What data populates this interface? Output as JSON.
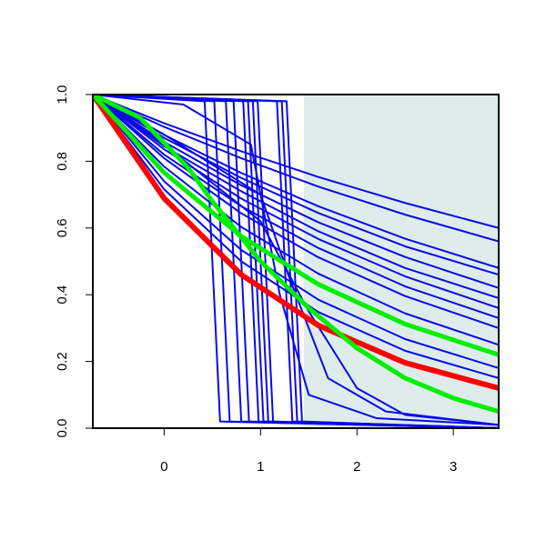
{
  "chart_data": {
    "type": "line",
    "xlim": [
      -0.74,
      3.47
    ],
    "ylim": [
      0,
      1
    ],
    "xticks": [
      0,
      1,
      2,
      3
    ],
    "yticks": [
      {
        "value": 0,
        "label": "0.0"
      },
      0.2,
      0.4,
      0.6,
      0.8,
      {
        "value": 1,
        "label": "1.0"
      }
    ],
    "shade": {
      "xlim": [
        1.45,
        3.47
      ],
      "color": "#dfecec"
    },
    "series": [
      {
        "color": "#0a0ae6",
        "width": 2,
        "x": [
          -0.74,
          0,
          0.8,
          1.6,
          2.5,
          3.47
        ],
        "values": [
          1,
          0.914,
          0.83,
          0.753,
          0.675,
          0.6
        ]
      },
      {
        "color": "#0a0ae6",
        "width": 2,
        "x": [
          -0.74,
          0,
          0.8,
          1.6,
          2.5,
          3.47
        ],
        "values": [
          1,
          0.903,
          0.809,
          0.724,
          0.64,
          0.56
        ]
      },
      {
        "color": "#0a0ae6",
        "width": 2,
        "x": [
          -0.74,
          0,
          0.8,
          1.6,
          2.5,
          3.47
        ],
        "values": [
          1,
          0.879,
          0.765,
          0.665,
          0.568,
          0.48
        ]
      },
      {
        "color": "#0a0ae6",
        "width": 2,
        "x": [
          -0.74,
          0,
          0.8,
          1.6,
          2.5,
          3.47
        ],
        "values": [
          1,
          0.87,
          0.75,
          0.645,
          0.545,
          0.46
        ]
      },
      {
        "color": "#0a0ae6",
        "width": 2,
        "x": [
          -0.74,
          0,
          0.8,
          1.6,
          2.5,
          3.47
        ],
        "values": [
          1,
          0.858,
          0.728,
          0.617,
          0.513,
          0.42
        ]
      },
      {
        "color": "#0a0ae6",
        "width": 2,
        "x": [
          -0.74,
          0,
          0.8,
          1.6,
          2.5,
          3.47
        ],
        "values": [
          1,
          0.845,
          0.71,
          0.59,
          0.48,
          0.39
        ]
      },
      {
        "color": "#0a0ae6",
        "width": 2,
        "x": [
          -0.74,
          0,
          0.8,
          1.6,
          2.5,
          3.47
        ],
        "values": [
          1,
          0.836,
          0.688,
          0.567,
          0.455,
          0.36
        ]
      },
      {
        "color": "#0a0ae6",
        "width": 2,
        "x": [
          -0.74,
          0,
          0.8,
          1.6,
          2.5,
          3.47
        ],
        "values": [
          1,
          0.82,
          0.665,
          0.54,
          0.425,
          0.33
        ]
      },
      {
        "color": "#0a0ae6",
        "width": 2,
        "x": [
          -0.74,
          0,
          0.8,
          1.6,
          2.5,
          3.47
        ],
        "values": [
          1,
          0.809,
          0.644,
          0.512,
          0.396,
          0.3
        ]
      },
      {
        "color": "#0a0ae6",
        "width": 2,
        "x": [
          -0.74,
          0,
          0.8,
          1.6,
          2.5,
          3.47
        ],
        "values": [
          1,
          0.784,
          0.603,
          0.463,
          0.344,
          0.25
        ]
      },
      {
        "color": "#0a0ae6",
        "width": 2,
        "x": [
          -0.74,
          0,
          0.8,
          1.6,
          2.5,
          3.47
        ],
        "values": [
          1,
          0.74,
          0.534,
          0.385,
          0.267,
          0.18
        ]
      },
      {
        "color": "#0a0ae6",
        "width": 2,
        "x": [
          -0.74,
          0,
          0.8,
          1.6,
          2.5,
          3.47
        ],
        "values": [
          1,
          0.716,
          0.5,
          0.348,
          0.232,
          0.15
        ]
      },
      {
        "color": "#0a0ae6",
        "width": 2,
        "x": [
          -0.74,
          0,
          1,
          1.5,
          2,
          2.5,
          3.47
        ],
        "values": [
          1,
          0.85,
          0.62,
          0.35,
          0.12,
          0.04,
          0.01
        ]
      },
      {
        "color": "#0a0ae6",
        "width": 2,
        "x": [
          -0.74,
          0,
          1,
          1.3,
          1.7,
          2.3,
          3.47
        ],
        "values": [
          1,
          0.88,
          0.7,
          0.45,
          0.15,
          0.05,
          0.01
        ]
      },
      {
        "color": "#0a0ae6",
        "width": 2,
        "x": [
          -0.74,
          0.2,
          0.9,
          1.2,
          1.5,
          2.2,
          3.47
        ],
        "values": [
          1,
          0.97,
          0.85,
          0.4,
          0.1,
          0.03,
          0.01
        ]
      },
      {
        "color": "#0a0ae6",
        "width": 2,
        "x": [
          -0.74,
          0.42,
          0.5,
          0.58,
          3.47
        ],
        "values": [
          1,
          0.98,
          0.5,
          0.02,
          0
        ]
      },
      {
        "color": "#0a0ae6",
        "width": 2,
        "x": [
          -0.74,
          0.52,
          0.6,
          0.68,
          3.47
        ],
        "values": [
          1,
          0.98,
          0.5,
          0.02,
          0
        ]
      },
      {
        "color": "#0a0ae6",
        "width": 2,
        "x": [
          -0.74,
          0.64,
          0.72,
          0.8,
          3.47
        ],
        "values": [
          1,
          0.98,
          0.5,
          0.02,
          0
        ]
      },
      {
        "color": "#0a0ae6",
        "width": 2,
        "x": [
          -0.74,
          0.72,
          0.8,
          0.88,
          3.47
        ],
        "values": [
          1,
          0.98,
          0.5,
          0.02,
          0
        ]
      },
      {
        "color": "#0a0ae6",
        "width": 2,
        "x": [
          -0.74,
          0.82,
          0.9,
          0.98,
          3.47
        ],
        "values": [
          1,
          0.98,
          0.5,
          0.02,
          0
        ]
      },
      {
        "color": "#0a0ae6",
        "width": 2,
        "x": [
          -0.74,
          0.87,
          0.95,
          1.03,
          3.47
        ],
        "values": [
          1,
          0.98,
          0.5,
          0.02,
          0
        ]
      },
      {
        "color": "#0a0ae6",
        "width": 2,
        "x": [
          -0.74,
          0.92,
          1,
          1.08,
          3.47
        ],
        "values": [
          1,
          0.98,
          0.5,
          0.02,
          0
        ]
      },
      {
        "color": "#0a0ae6",
        "width": 2,
        "x": [
          -0.74,
          0.97,
          1.05,
          1.13,
          3.47
        ],
        "values": [
          1,
          0.98,
          0.5,
          0.02,
          0
        ]
      },
      {
        "color": "#0a0ae6",
        "width": 2,
        "x": [
          -0.74,
          1.17,
          1.25,
          1.33,
          3.47
        ],
        "values": [
          1,
          0.98,
          0.5,
          0.02,
          0
        ]
      },
      {
        "color": "#0a0ae6",
        "width": 2,
        "x": [
          -0.74,
          1.22,
          1.3,
          1.38,
          3.47
        ],
        "values": [
          1,
          0.98,
          0.5,
          0.02,
          0
        ]
      },
      {
        "color": "#0a0ae6",
        "width": 2,
        "x": [
          -0.74,
          1.27,
          1.35,
          1.43,
          3.47
        ],
        "values": [
          1,
          0.98,
          0.5,
          0.02,
          0
        ]
      },
      {
        "color": "#ff0000",
        "width": 6,
        "x": [
          -0.74,
          0,
          0.8,
          1.6,
          2.5,
          3.47
        ],
        "values": [
          1,
          0.689,
          0.46,
          0.308,
          0.196,
          0.12
        ]
      },
      {
        "color": "#00ee00",
        "width": 5,
        "x": [
          -0.74,
          0,
          0.8,
          1.6,
          2.5,
          3.47
        ],
        "values": [
          1,
          0.766,
          0.575,
          0.431,
          0.312,
          0.22
        ]
      },
      {
        "color": "#00ee00",
        "width": 5,
        "x": [
          -0.74,
          -0.25,
          0.25,
          0.5,
          1,
          1.5,
          2,
          2.5,
          3,
          3.47
        ],
        "values": [
          1,
          0.93,
          0.78,
          0.68,
          0.5,
          0.36,
          0.24,
          0.15,
          0.09,
          0.05
        ]
      }
    ]
  }
}
